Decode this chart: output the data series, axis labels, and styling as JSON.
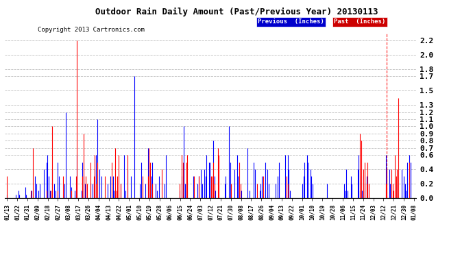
{
  "title": "Outdoor Rain Daily Amount (Past/Previous Year) 20130113",
  "copyright": "Copyright 2013 Cartronics.com",
  "legend_label_prev": "Previous  (Inches)",
  "legend_label_past": "Past  (Inches)",
  "color_prev": "#0000ff",
  "color_past": "#ff0000",
  "legend_bg_prev": "#0000cc",
  "legend_bg_past": "#cc0000",
  "ylim": [
    0.0,
    2.3
  ],
  "yticks": [
    0.0,
    0.2,
    0.4,
    0.6,
    0.7,
    0.8,
    0.9,
    1.0,
    1.1,
    1.2,
    1.3,
    1.5,
    1.7,
    1.8,
    2.0,
    2.2
  ],
  "bg_color": "#ffffff",
  "grid_color": "#aaaaaa",
  "x_labels": [
    "01/13",
    "01/22",
    "01/31",
    "02/09",
    "02/18",
    "02/27",
    "03/08",
    "03/17",
    "03/26",
    "04/04",
    "04/13",
    "04/22",
    "05/01",
    "05/10",
    "05/19",
    "05/28",
    "06/06",
    "06/15",
    "06/24",
    "07/03",
    "07/12",
    "07/21",
    "07/30",
    "08/08",
    "08/17",
    "08/26",
    "09/04",
    "09/13",
    "09/22",
    "10/01",
    "10/10",
    "10/19",
    "10/28",
    "11/06",
    "11/15",
    "11/24",
    "12/03",
    "12/12",
    "12/21",
    "12/30",
    "01/08"
  ],
  "dashed_line_index": 337,
  "previous_rain": [
    0.05,
    0.0,
    0.0,
    0.0,
    0.0,
    0.0,
    0.0,
    0.0,
    0.05,
    0.0,
    0.1,
    0.05,
    0.0,
    0.0,
    0.0,
    0.0,
    0.15,
    0.05,
    0.0,
    0.0,
    0.0,
    0.05,
    0.1,
    0.0,
    0.0,
    0.3,
    0.2,
    0.0,
    0.1,
    0.2,
    0.0,
    0.0,
    0.0,
    0.4,
    0.0,
    0.5,
    0.6,
    0.3,
    0.1,
    0.0,
    0.4,
    0.0,
    0.2,
    0.1,
    0.0,
    0.5,
    0.3,
    0.0,
    0.0,
    0.0,
    0.0,
    0.2,
    1.2,
    0.0,
    0.0,
    0.0,
    0.3,
    0.15,
    0.0,
    0.0,
    0.1,
    0.05,
    0.6,
    0.0,
    0.0,
    0.0,
    0.1,
    0.5,
    0.3,
    0.2,
    0.0,
    0.0,
    0.0,
    0.0,
    0.2,
    0.0,
    0.2,
    0.0,
    0.4,
    0.6,
    1.1,
    0.0,
    0.4,
    0.0,
    0.3,
    0.0,
    0.0,
    0.0,
    0.0,
    0.2,
    0.0,
    0.0,
    0.3,
    0.0,
    0.3,
    0.1,
    0.0,
    0.0,
    0.0,
    0.0,
    0.0,
    0.2,
    0.0,
    0.0,
    0.6,
    0.1,
    0.0,
    0.4,
    0.0,
    0.0,
    0.3,
    0.0,
    0.0,
    1.7,
    0.0,
    0.0,
    0.0,
    0.0,
    0.2,
    0.5,
    0.0,
    0.0,
    0.0,
    0.2,
    0.0,
    0.7,
    0.4,
    0.2,
    0.3,
    0.5,
    0.0,
    0.0,
    0.2,
    0.1,
    0.0,
    0.3,
    0.0,
    0.0,
    0.0,
    0.0,
    0.2,
    0.6,
    0.0,
    0.0,
    0.0,
    0.0,
    0.0,
    0.0,
    0.0,
    0.0,
    0.0,
    0.0,
    0.0,
    0.1,
    0.0,
    0.3,
    0.2,
    1.0,
    0.2,
    0.1,
    0.2,
    0.0,
    0.0,
    0.0,
    0.0,
    0.3,
    0.0,
    0.0,
    0.0,
    0.2,
    0.3,
    0.0,
    0.4,
    0.2,
    0.0,
    0.4,
    0.3,
    0.6,
    0.0,
    0.5,
    0.5,
    0.0,
    0.0,
    0.8,
    0.3,
    0.1,
    0.0,
    0.0,
    0.0,
    0.0,
    0.0,
    0.0,
    0.0,
    0.2,
    0.3,
    0.0,
    0.0,
    1.0,
    0.5,
    0.0,
    0.0,
    0.0,
    0.4,
    0.0,
    0.6,
    0.3,
    0.1,
    0.0,
    0.1,
    0.0,
    0.0,
    0.0,
    0.0,
    0.7,
    0.0,
    0.1,
    0.0,
    0.0,
    0.0,
    0.5,
    0.4,
    0.0,
    0.0,
    0.0,
    0.1,
    0.2,
    0.3,
    0.1,
    0.0,
    0.5,
    0.0,
    0.4,
    0.2,
    0.0,
    0.0,
    0.0,
    0.0,
    0.0,
    0.2,
    0.0,
    0.3,
    0.5,
    0.0,
    0.0,
    0.0,
    0.0,
    0.0,
    0.6,
    0.0,
    0.6,
    0.4,
    0.1,
    0.0,
    0.0,
    0.0,
    0.0,
    0.0,
    0.0,
    0.0,
    0.0,
    0.0,
    0.0,
    0.2,
    0.3,
    0.5,
    0.0,
    0.6,
    0.5,
    0.0,
    0.4,
    0.3,
    0.2,
    0.0,
    0.0,
    0.0,
    0.0,
    0.0,
    0.0,
    0.0,
    0.0,
    0.0,
    0.0,
    0.0,
    0.0,
    0.2,
    0.0,
    0.0,
    0.0,
    0.0,
    0.0,
    0.0,
    0.0,
    0.0,
    0.0,
    0.0,
    0.0,
    0.0,
    0.0,
    0.0,
    0.2,
    0.1,
    0.4,
    0.1,
    0.0,
    0.0,
    0.3,
    0.2,
    0.0,
    0.0,
    0.0,
    0.0,
    0.4,
    0.6,
    0.1,
    0.3,
    0.1,
    0.1,
    0.2,
    0.0,
    0.3,
    0.2,
    0.0,
    0.0,
    0.0,
    0.0,
    0.0,
    0.0,
    0.0,
    0.0,
    0.0,
    0.0,
    0.0,
    0.0,
    0.0,
    0.0,
    0.0,
    0.6,
    0.0,
    0.0,
    0.4,
    0.2,
    0.0,
    0.0,
    0.0,
    0.0,
    0.0,
    0.2,
    0.0,
    0.0,
    0.0,
    0.4,
    0.0,
    0.3,
    0.2,
    0.1,
    0.5,
    0.0,
    0.6,
    0.5,
    0.0,
    0.0,
    0.0
  ],
  "past_rain": [
    0.3,
    0.0,
    0.0,
    0.0,
    0.0,
    0.0,
    0.0,
    0.0,
    0.0,
    0.0,
    0.0,
    0.0,
    0.0,
    0.0,
    0.0,
    0.0,
    0.0,
    0.0,
    0.0,
    0.0,
    0.0,
    0.1,
    0.0,
    0.7,
    0.0,
    0.0,
    0.0,
    0.0,
    0.0,
    0.0,
    0.0,
    0.0,
    0.0,
    0.0,
    0.0,
    0.1,
    0.0,
    0.0,
    0.0,
    0.1,
    1.0,
    0.0,
    0.0,
    0.0,
    0.0,
    0.1,
    0.0,
    0.0,
    0.0,
    0.0,
    0.3,
    0.0,
    0.0,
    0.0,
    0.0,
    0.0,
    0.0,
    0.1,
    0.0,
    0.0,
    0.0,
    0.3,
    2.2,
    0.0,
    0.0,
    0.0,
    0.0,
    0.3,
    0.9,
    0.0,
    0.3,
    0.2,
    0.0,
    0.0,
    0.5,
    0.0,
    0.0,
    0.3,
    0.6,
    0.2,
    0.5,
    0.0,
    0.0,
    0.0,
    0.0,
    0.0,
    0.0,
    0.3,
    0.0,
    0.0,
    0.0,
    0.0,
    0.0,
    0.5,
    0.0,
    0.0,
    0.7,
    0.1,
    0.3,
    0.6,
    0.0,
    0.2,
    0.0,
    0.0,
    0.0,
    0.0,
    0.0,
    0.6,
    0.0,
    0.0,
    0.0,
    0.0,
    0.0,
    0.0,
    0.0,
    0.0,
    0.0,
    0.0,
    0.0,
    0.0,
    0.3,
    0.0,
    0.0,
    0.0,
    0.0,
    0.3,
    0.7,
    0.5,
    0.0,
    0.2,
    0.0,
    0.0,
    0.0,
    0.0,
    0.0,
    0.0,
    0.0,
    0.4,
    0.0,
    0.0,
    0.0,
    0.0,
    0.0,
    0.0,
    0.0,
    0.0,
    0.0,
    0.0,
    0.0,
    0.0,
    0.0,
    0.0,
    0.0,
    0.2,
    0.0,
    0.6,
    0.5,
    0.0,
    0.0,
    0.5,
    0.6,
    0.0,
    0.0,
    0.0,
    0.0,
    0.0,
    0.3,
    0.0,
    0.0,
    0.0,
    0.3,
    0.0,
    0.0,
    0.0,
    0.0,
    0.0,
    0.0,
    0.0,
    0.0,
    0.0,
    0.0,
    0.3,
    0.3,
    0.5,
    0.2,
    0.0,
    0.0,
    0.7,
    0.6,
    0.0,
    0.0,
    0.0,
    0.0,
    0.0,
    0.0,
    0.0,
    0.0,
    0.0,
    0.0,
    0.2,
    0.0,
    0.0,
    0.0,
    0.0,
    0.0,
    0.0,
    0.5,
    0.2,
    0.0,
    0.0,
    0.0,
    0.0,
    0.0,
    0.0,
    0.0,
    0.0,
    0.0,
    0.0,
    0.0,
    0.0,
    0.0,
    0.0,
    0.2,
    0.0,
    0.0,
    0.0,
    0.0,
    0.3,
    0.0,
    0.0,
    0.0,
    0.0,
    0.0,
    0.0,
    0.0,
    0.0,
    0.0,
    0.0,
    0.0,
    0.0,
    0.0,
    0.0,
    0.0,
    0.0,
    0.0,
    0.0,
    0.0,
    0.0,
    0.3,
    0.2,
    0.0,
    0.0,
    0.0,
    0.0,
    0.0,
    0.0,
    0.0,
    0.0,
    0.0,
    0.0,
    0.0,
    0.0,
    0.0,
    0.0,
    0.0,
    0.0,
    0.0,
    0.0,
    0.0,
    0.0,
    0.0,
    0.0,
    0.0,
    0.0,
    0.0,
    0.0,
    0.0,
    0.0,
    0.0,
    0.0,
    0.0,
    0.0,
    0.0,
    0.0,
    0.0,
    0.0,
    0.0,
    0.0,
    0.0,
    0.0,
    0.0,
    0.0,
    0.0,
    0.0,
    0.0,
    0.0,
    0.0,
    0.0,
    0.0,
    0.0,
    0.0,
    0.0,
    0.0,
    0.0,
    0.0,
    0.0,
    0.0,
    0.0,
    0.0,
    0.0,
    0.0,
    0.0,
    0.0,
    0.9,
    0.8,
    0.0,
    0.4,
    0.5,
    0.0,
    0.2,
    0.5,
    0.2,
    0.0,
    0.0,
    0.0,
    0.0,
    0.0,
    0.0,
    0.0,
    0.0,
    0.0,
    0.0,
    0.0,
    0.0,
    0.0,
    0.0,
    0.2,
    0.4,
    0.0,
    0.0,
    0.0,
    0.4,
    0.2,
    0.1,
    0.6,
    0.3,
    0.4,
    1.4,
    0.0,
    0.0,
    0.0,
    0.0,
    0.0,
    0.0,
    0.0,
    0.0,
    0.0,
    0.5,
    0.0,
    0.0,
    0.0,
    0.0
  ]
}
